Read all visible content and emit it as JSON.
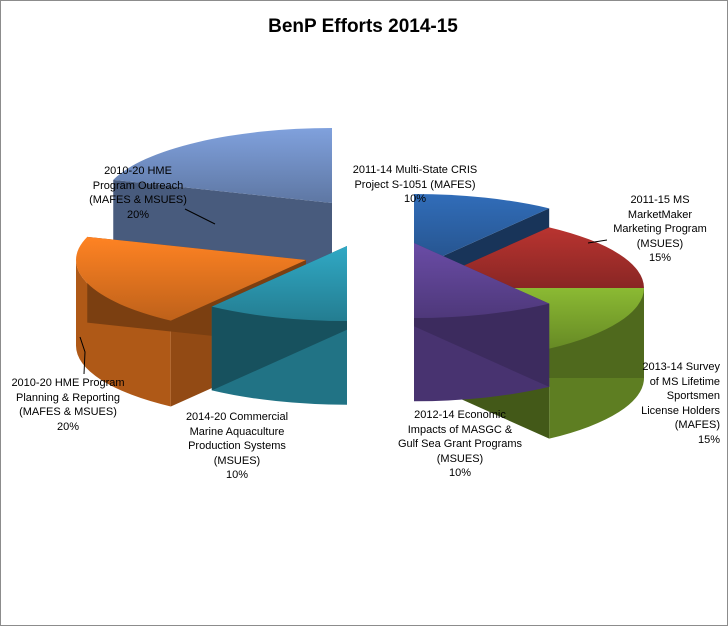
{
  "chart_data": {
    "type": "pie",
    "title": "BenP Efforts 2014-15",
    "style": "3d-exploded",
    "slices": [
      {
        "label": "2011-14 Multi-State CRIS Project S-1051 (MAFES)",
        "label_lines": [
          "2011-14 Multi-State CRIS",
          "Project S-1051 (MAFES)"
        ],
        "percent_text": "10%",
        "value": 10,
        "color": "#2b5fa1"
      },
      {
        "label": "2011-15 MS MarketMaker Marketing Program (MSUES)",
        "label_lines": [
          "2011-15 MS",
          "MarketMaker",
          "Marketing Program",
          "(MSUES)"
        ],
        "percent_text": "15%",
        "value": 15,
        "color": "#a12d2a"
      },
      {
        "label": "2013-14 Survey of MS Lifetime Sportsmen License Holders (MAFES)",
        "label_lines": [
          "2013-14 Survey",
          "of MS Lifetime",
          "Sportsmen",
          "License Holders",
          "(MAFES)"
        ],
        "percent_text": "15%",
        "value": 15,
        "color": "#79a22c"
      },
      {
        "label": "2012-14 Economic Impacts of MASGC & Gulf Sea Grant Programs (MSUES)",
        "label_lines": [
          "2012-14 Economic",
          "Impacts of MASGC &",
          "Gulf Sea Grant Programs",
          "(MSUES)"
        ],
        "percent_text": "10%",
        "value": 10,
        "color": "#5c4290"
      },
      {
        "label": "2014-20 Commercial Marine Aquaculture Production Systems (MSUES)",
        "label_lines": [
          "2014-20 Commercial",
          "Marine Aquaculture",
          "Production Systems",
          "(MSUES)"
        ],
        "percent_text": "10%",
        "value": 10,
        "color": "#2a93ab"
      },
      {
        "label": "2010-20 HME Program Planning & Reporting (MAFES & MSUES)",
        "label_lines": [
          "2010-20 HME Program",
          "Planning & Reporting",
          "(MAFES & MSUES)"
        ],
        "percent_text": "20%",
        "value": 20,
        "color": "#e0721e"
      },
      {
        "label": "2010-20 HME Program Outreach (MAFES & MSUES)",
        "label_lines": [
          "2010-20 HME",
          "Program Outreach",
          "(MAFES & MSUES)"
        ],
        "percent_text": "20%",
        "value": 20,
        "color": "#6f8cc0"
      }
    ]
  }
}
